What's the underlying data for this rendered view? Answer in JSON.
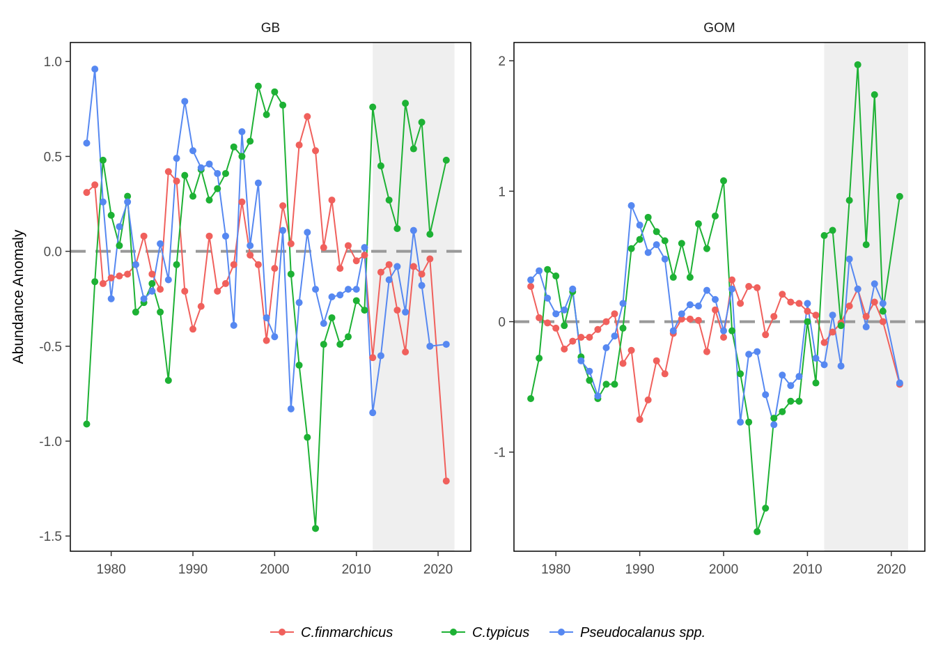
{
  "ylabel": "Abundance Anomaly",
  "colors": {
    "C.finmarchicus": "#F0605C",
    "C.typicus": "#1DB134",
    "Pseudocalanus spp.": "#5688F1",
    "zero_line": "#999999",
    "shade": "#EFEFEF"
  },
  "legend": {
    "position": "bottom",
    "items": [
      "C.finmarchicus",
      "C.typicus",
      "Pseudocalanus spp."
    ]
  },
  "chart_data": [
    {
      "type": "line",
      "panel": "GB",
      "title": "GB",
      "xlim": [
        1975,
        2024
      ],
      "ylim": [
        -1.58,
        1.1
      ],
      "xticks": [
        1980,
        1990,
        2000,
        2010,
        2020
      ],
      "yticks": [
        -1.5,
        -1.0,
        -0.5,
        0.0,
        0.5,
        1.0
      ],
      "ytick_labels": [
        "-1.5",
        "-1.0",
        "-0.5",
        "0.0",
        "0.5",
        "1.0"
      ],
      "reference_line": 0,
      "shaded_range": [
        2012,
        2022
      ],
      "series": [
        {
          "name": "C.finmarchicus",
          "x": [
            1977,
            1978,
            1979,
            1980,
            1981,
            1982,
            1983,
            1984,
            1985,
            1986,
            1987,
            1988,
            1989,
            1990,
            1991,
            1992,
            1993,
            1994,
            1995,
            1996,
            1997,
            1998,
            1999,
            2000,
            2001,
            2002,
            2003,
            2004,
            2005,
            2006,
            2007,
            2008,
            2009,
            2010,
            2011,
            2012,
            2013,
            2014,
            2015,
            2016,
            2017,
            2018,
            2019,
            2021
          ],
          "y": [
            0.31,
            0.35,
            -0.17,
            -0.14,
            -0.13,
            -0.12,
            -0.07,
            0.08,
            -0.12,
            -0.2,
            0.42,
            0.37,
            -0.21,
            -0.41,
            -0.29,
            0.08,
            -0.21,
            -0.17,
            -0.07,
            0.26,
            -0.02,
            -0.07,
            -0.47,
            -0.09,
            0.24,
            0.04,
            0.56,
            0.71,
            0.53,
            0.02,
            0.27,
            -0.09,
            0.03,
            -0.05,
            -0.02,
            -0.56,
            -0.11,
            -0.07,
            -0.31,
            -0.53,
            -0.08,
            -0.12,
            -0.04,
            -1.21
          ]
        },
        {
          "name": "C.typicus",
          "x": [
            1977,
            1978,
            1979,
            1980,
            1981,
            1982,
            1983,
            1984,
            1985,
            1986,
            1987,
            1988,
            1989,
            1990,
            1991,
            1992,
            1993,
            1994,
            1995,
            1996,
            1997,
            1998,
            1999,
            2000,
            2001,
            2002,
            2003,
            2004,
            2005,
            2006,
            2007,
            2008,
            2009,
            2010,
            2011,
            2012,
            2013,
            2014,
            2015,
            2016,
            2017,
            2018,
            2019,
            2021
          ],
          "y": [
            -0.91,
            -0.16,
            0.48,
            0.19,
            0.03,
            0.29,
            -0.32,
            -0.27,
            -0.17,
            -0.32,
            -0.68,
            -0.07,
            0.4,
            0.29,
            0.43,
            0.27,
            0.33,
            0.41,
            0.55,
            0.5,
            0.58,
            0.87,
            0.72,
            0.84,
            0.77,
            -0.12,
            -0.6,
            -0.98,
            -1.46,
            -0.49,
            -0.35,
            -0.49,
            -0.45,
            -0.26,
            -0.31,
            0.76,
            0.45,
            0.27,
            0.12,
            0.78,
            0.54,
            0.68,
            0.09,
            0.48
          ]
        },
        {
          "name": "Pseudocalanus spp.",
          "x": [
            1977,
            1978,
            1979,
            1980,
            1981,
            1982,
            1983,
            1984,
            1985,
            1986,
            1987,
            1988,
            1989,
            1990,
            1991,
            1992,
            1993,
            1994,
            1995,
            1996,
            1997,
            1998,
            1999,
            2000,
            2001,
            2002,
            2003,
            2004,
            2005,
            2006,
            2007,
            2008,
            2009,
            2010,
            2011,
            2012,
            2013,
            2014,
            2015,
            2016,
            2017,
            2018,
            2019,
            2021
          ],
          "y": [
            0.57,
            0.96,
            0.26,
            -0.25,
            0.13,
            0.26,
            -0.07,
            -0.25,
            -0.21,
            0.04,
            -0.15,
            0.49,
            0.79,
            0.53,
            0.44,
            0.46,
            0.41,
            0.08,
            -0.39,
            0.63,
            0.03,
            0.36,
            -0.35,
            -0.45,
            0.11,
            -0.83,
            -0.27,
            0.1,
            -0.2,
            -0.38,
            -0.24,
            -0.23,
            -0.2,
            -0.2,
            0.02,
            -0.85,
            -0.55,
            -0.15,
            -0.08,
            -0.32,
            0.11,
            -0.18,
            -0.5,
            -0.49
          ]
        }
      ]
    },
    {
      "type": "line",
      "panel": "GOM",
      "title": "GOM",
      "xlim": [
        1975,
        2024
      ],
      "ylim": [
        -1.76,
        2.14
      ],
      "xticks": [
        1980,
        1990,
        2000,
        2010,
        2020
      ],
      "yticks": [
        -1,
        0,
        1,
        2
      ],
      "ytick_labels": [
        "-1",
        "0",
        "1",
        "2"
      ],
      "reference_line": 0,
      "shaded_range": [
        2012,
        2022
      ],
      "series": [
        {
          "name": "C.finmarchicus",
          "x": [
            1977,
            1978,
            1979,
            1980,
            1981,
            1982,
            1983,
            1984,
            1985,
            1986,
            1987,
            1988,
            1989,
            1990,
            1991,
            1992,
            1993,
            1994,
            1995,
            1996,
            1997,
            1998,
            1999,
            2000,
            2001,
            2002,
            2003,
            2004,
            2005,
            2006,
            2007,
            2008,
            2009,
            2010,
            2011,
            2012,
            2013,
            2014,
            2015,
            2016,
            2017,
            2018,
            2019,
            2021
          ],
          "y": [
            0.27,
            0.03,
            -0.01,
            -0.05,
            -0.21,
            -0.15,
            -0.12,
            -0.12,
            -0.06,
            0.0,
            0.06,
            -0.32,
            -0.22,
            -0.75,
            -0.6,
            -0.3,
            -0.4,
            -0.09,
            0.02,
            0.02,
            0.01,
            -0.23,
            0.09,
            -0.12,
            0.32,
            0.14,
            0.27,
            0.26,
            -0.1,
            0.04,
            0.21,
            0.15,
            0.14,
            0.08,
            0.05,
            -0.16,
            -0.08,
            -0.01,
            0.12,
            0.25,
            0.04,
            0.15,
            0.0,
            -0.48
          ]
        },
        {
          "name": "C.typicus",
          "x": [
            1977,
            1978,
            1979,
            1980,
            1981,
            1982,
            1983,
            1984,
            1985,
            1986,
            1987,
            1988,
            1989,
            1990,
            1991,
            1992,
            1993,
            1994,
            1995,
            1996,
            1997,
            1998,
            1999,
            2000,
            2001,
            2002,
            2003,
            2004,
            2005,
            2006,
            2007,
            2008,
            2009,
            2010,
            2011,
            2012,
            2013,
            2014,
            2015,
            2016,
            2017,
            2018,
            2019,
            2021
          ],
          "y": [
            -0.59,
            -0.28,
            0.4,
            0.35,
            -0.03,
            0.23,
            -0.27,
            -0.45,
            -0.59,
            -0.48,
            -0.48,
            -0.05,
            0.56,
            0.63,
            0.8,
            0.69,
            0.62,
            0.34,
            0.6,
            0.34,
            0.75,
            0.56,
            0.81,
            1.08,
            -0.07,
            -0.4,
            -0.77,
            -1.61,
            -1.43,
            -0.74,
            -0.69,
            -0.61,
            -0.61,
            0.0,
            -0.47,
            0.66,
            0.7,
            -0.03,
            0.93,
            1.97,
            0.59,
            1.74,
            0.08,
            0.96
          ]
        },
        {
          "name": "Pseudocalanus spp.",
          "x": [
            1977,
            1978,
            1979,
            1980,
            1981,
            1982,
            1983,
            1984,
            1985,
            1986,
            1987,
            1988,
            1989,
            1990,
            1991,
            1992,
            1993,
            1994,
            1995,
            1996,
            1997,
            1998,
            1999,
            2000,
            2001,
            2002,
            2003,
            2004,
            2005,
            2006,
            2007,
            2008,
            2009,
            2010,
            2011,
            2012,
            2013,
            2014,
            2015,
            2016,
            2017,
            2018,
            2019,
            2021
          ],
          "y": [
            0.32,
            0.39,
            0.18,
            0.06,
            0.09,
            0.25,
            -0.3,
            -0.38,
            -0.57,
            -0.2,
            -0.11,
            0.14,
            0.89,
            0.74,
            0.53,
            0.59,
            0.48,
            -0.07,
            0.06,
            0.13,
            0.12,
            0.24,
            0.17,
            -0.07,
            0.25,
            -0.77,
            -0.25,
            -0.23,
            -0.56,
            -0.79,
            -0.41,
            -0.49,
            -0.42,
            0.14,
            -0.28,
            -0.33,
            0.05,
            -0.34,
            0.48,
            0.25,
            -0.04,
            0.29,
            0.14,
            -0.47
          ]
        }
      ]
    }
  ]
}
